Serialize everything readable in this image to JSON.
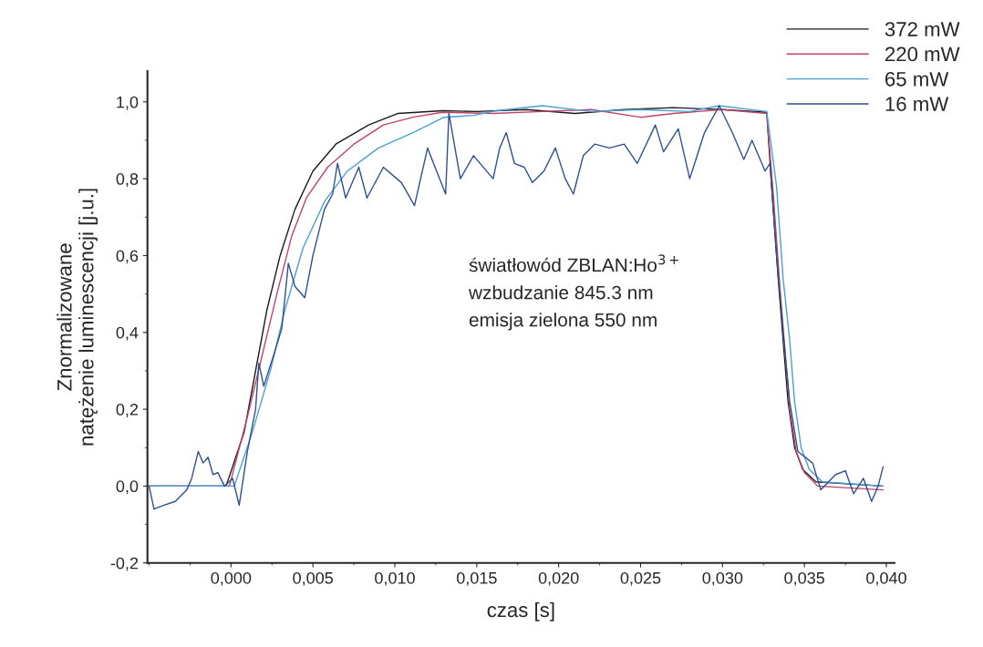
{
  "chart_data": {
    "type": "line",
    "xlabel": "czas [s]",
    "ylabel": "Znormalizowane\nnatężenie luminescencji [j.u.]",
    "xlim": [
      -0.0051,
      0.0405
    ],
    "ylim": [
      -0.2,
      1.08
    ],
    "xticks": [
      {
        "value": 0.0,
        "label": "0,000"
      },
      {
        "value": 0.005,
        "label": "0,005"
      },
      {
        "value": 0.01,
        "label": "0,010"
      },
      {
        "value": 0.015,
        "label": "0,015"
      },
      {
        "value": 0.02,
        "label": "0,020"
      },
      {
        "value": 0.025,
        "label": "0,025"
      },
      {
        "value": 0.03,
        "label": "0,030"
      },
      {
        "value": 0.035,
        "label": "0,035"
      },
      {
        "value": 0.04,
        "label": "0,040"
      }
    ],
    "yticks": [
      {
        "value": -0.2,
        "label": "-0,2"
      },
      {
        "value": 0.0,
        "label": "0,0"
      },
      {
        "value": 0.2,
        "label": "0,2"
      },
      {
        "value": 0.4,
        "label": "0,4"
      },
      {
        "value": 0.6,
        "label": "0,6"
      },
      {
        "value": 0.8,
        "label": "0,8"
      },
      {
        "value": 1.0,
        "label": "1,0"
      }
    ],
    "grid": false,
    "legend": "top right",
    "marker": "none",
    "line_style": "solid",
    "annotations": [
      "światłowód ZBLAN:Ho$^{3+}$\nwzbudzanie 845.3 nm\nemisja zielona 550 nm"
    ],
    "series": [
      {
        "name": "372 mW",
        "color": "#1a1a1a",
        "x": [
          -0.005,
          -0.0003,
          0.0008,
          0.0015,
          0.0022,
          0.003,
          0.0039,
          0.005,
          0.0064,
          0.0084,
          0.0102,
          0.0129,
          0.015,
          0.018,
          0.021,
          0.024,
          0.027,
          0.03,
          0.0327,
          0.033,
          0.0334,
          0.0337,
          0.034,
          0.0344,
          0.0349,
          0.0357,
          0.0398
        ],
        "values": [
          0.0,
          0.0,
          0.14,
          0.3,
          0.46,
          0.6,
          0.72,
          0.82,
          0.89,
          0.94,
          0.97,
          0.977,
          0.975,
          0.98,
          0.97,
          0.98,
          0.985,
          0.98,
          0.973,
          0.78,
          0.54,
          0.38,
          0.22,
          0.1,
          0.043,
          0.011,
          0.0
        ]
      },
      {
        "name": "220 mW",
        "color": "#c0436a",
        "x": [
          -0.005,
          -0.0001,
          0.001,
          0.0019,
          0.0028,
          0.0037,
          0.0046,
          0.0059,
          0.0075,
          0.0093,
          0.0111,
          0.0129,
          0.016,
          0.019,
          0.022,
          0.025,
          0.027,
          0.03,
          0.0327,
          0.0331,
          0.0335,
          0.0338,
          0.0341,
          0.0345,
          0.035,
          0.0358,
          0.0398
        ],
        "values": [
          0.0,
          0.0,
          0.18,
          0.34,
          0.5,
          0.65,
          0.75,
          0.83,
          0.89,
          0.94,
          0.96,
          0.973,
          0.97,
          0.975,
          0.98,
          0.96,
          0.97,
          0.98,
          0.97,
          0.76,
          0.52,
          0.36,
          0.2,
          0.09,
          0.035,
          0.0,
          -0.01
        ]
      },
      {
        "name": "65 mW",
        "color": "#4a9fd8",
        "x": [
          -0.005,
          0.0002,
          0.0013,
          0.0024,
          0.0033,
          0.0044,
          0.0057,
          0.0071,
          0.009,
          0.0111,
          0.013,
          0.0148,
          0.0162,
          0.019,
          0.022,
          0.025,
          0.028,
          0.0298,
          0.0327,
          0.0333,
          0.0337,
          0.0341,
          0.0344,
          0.0348,
          0.0353,
          0.0361,
          0.0398
        ],
        "values": [
          0.0,
          0.0,
          0.14,
          0.3,
          0.46,
          0.62,
          0.74,
          0.82,
          0.88,
          0.92,
          0.96,
          0.965,
          0.977,
          0.99,
          0.975,
          0.98,
          0.975,
          0.99,
          0.975,
          0.78,
          0.54,
          0.38,
          0.22,
          0.1,
          0.043,
          0.011,
          0.0
        ]
      },
      {
        "name": "16 mW",
        "color": "#2f4f8f",
        "x": [
          -0.005,
          -0.0047,
          -0.0041,
          -0.0034,
          -0.0027,
          -0.0024,
          -0.002,
          -0.0017,
          -0.0014,
          -0.0011,
          -0.0008,
          -0.0004,
          0.0001,
          0.0005,
          0.001,
          0.0015,
          0.0017,
          0.002,
          0.0026,
          0.0031,
          0.0035,
          0.0039,
          0.0045,
          0.005,
          0.0057,
          0.0062,
          0.0065,
          0.007,
          0.0078,
          0.0083,
          0.0093,
          0.0104,
          0.0112,
          0.012,
          0.0131,
          0.0133,
          0.014,
          0.0148,
          0.016,
          0.0164,
          0.0168,
          0.0173,
          0.0179,
          0.0184,
          0.0191,
          0.0198,
          0.0204,
          0.0209,
          0.0215,
          0.0222,
          0.0231,
          0.024,
          0.0248,
          0.0259,
          0.0264,
          0.0273,
          0.028,
          0.0289,
          0.0298,
          0.0306,
          0.0313,
          0.0318,
          0.0326,
          0.0329,
          0.0333,
          0.0337,
          0.0341,
          0.0346,
          0.0355,
          0.036,
          0.0369,
          0.0375,
          0.038,
          0.0386,
          0.0391,
          0.0395,
          0.0398
        ],
        "values": [
          0.0,
          -0.06,
          -0.05,
          -0.04,
          -0.01,
          0.02,
          0.09,
          0.06,
          0.075,
          0.03,
          0.035,
          0.0,
          0.02,
          -0.05,
          0.09,
          0.2,
          0.32,
          0.26,
          0.34,
          0.41,
          0.58,
          0.52,
          0.49,
          0.6,
          0.72,
          0.76,
          0.84,
          0.75,
          0.83,
          0.75,
          0.83,
          0.79,
          0.73,
          0.88,
          0.76,
          0.97,
          0.8,
          0.86,
          0.8,
          0.88,
          0.92,
          0.84,
          0.83,
          0.79,
          0.82,
          0.88,
          0.8,
          0.76,
          0.86,
          0.89,
          0.88,
          0.89,
          0.84,
          0.94,
          0.87,
          0.93,
          0.8,
          0.92,
          0.99,
          0.92,
          0.85,
          0.9,
          0.82,
          0.84,
          0.6,
          0.4,
          0.22,
          0.09,
          0.06,
          -0.01,
          0.03,
          0.04,
          -0.02,
          0.02,
          -0.04,
          0.0,
          0.05
        ]
      }
    ]
  }
}
